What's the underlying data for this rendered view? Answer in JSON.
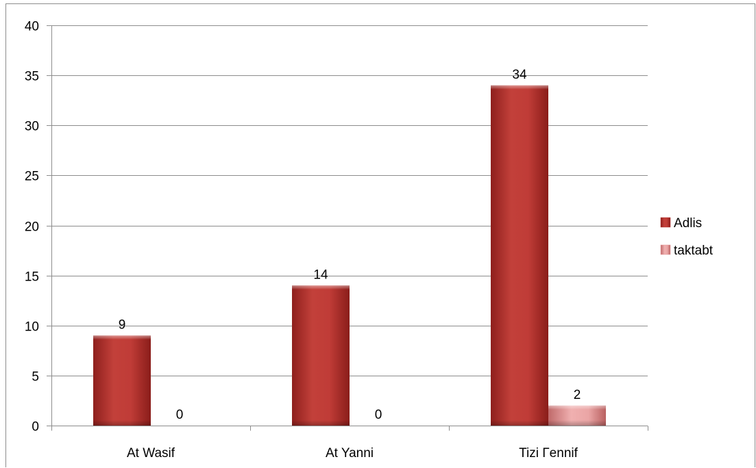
{
  "chart_data": {
    "type": "bar",
    "title": "",
    "xlabel": "",
    "ylabel": "",
    "categories": [
      "At Wasif",
      "At Yanni",
      "Tizi Γennif"
    ],
    "series": [
      {
        "name": "Adlis",
        "values": [
          9,
          14,
          34
        ],
        "color": "#b3302c"
      },
      {
        "name": "taktabt",
        "values": [
          0,
          0,
          2
        ],
        "color": "#e7999a"
      }
    ],
    "ylim": [
      0,
      40
    ],
    "yticks": [
      0,
      5,
      10,
      15,
      20,
      25,
      30,
      35,
      40
    ],
    "grid": true,
    "legend_position": "right",
    "data_labels": true
  }
}
